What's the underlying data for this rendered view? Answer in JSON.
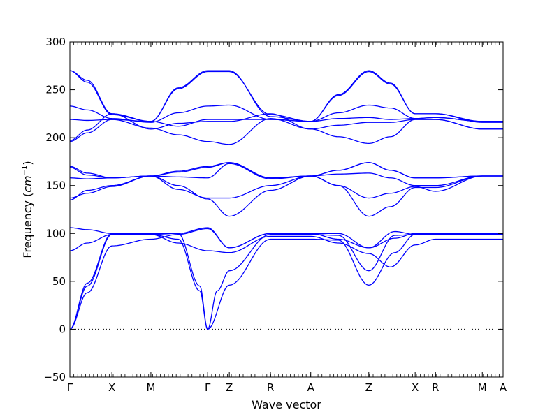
{
  "chart_data": {
    "type": "line",
    "xlabel": "Wave vector",
    "ylabel": "Frequency",
    "ylabel_unit": "cm",
    "ylabel_unit_exp": "−1",
    "ylim": [
      -50,
      300
    ],
    "y_ticks": [
      -50,
      0,
      50,
      100,
      150,
      200,
      250,
      300
    ],
    "y_tick_labels": [
      "−50",
      "0",
      "50",
      "100",
      "150",
      "200",
      "250",
      "300"
    ],
    "grid": false,
    "line_color": "#0000ff",
    "zero_line": true,
    "kpoint_labels": [
      "Γ",
      "X",
      "M",
      "Γ",
      "Z",
      "R",
      "A",
      "Z",
      "X",
      "R",
      "M",
      "A"
    ],
    "kpoint_positions": [
      0,
      0.097,
      0.187,
      0.318,
      0.368,
      0.463,
      0.556,
      0.69,
      0.797,
      0.844,
      0.952,
      1.0
    ],
    "series": [
      {
        "values": [
          [
            0,
            0
          ],
          [
            0.04,
            38
          ],
          [
            0.097,
            87
          ],
          [
            0.187,
            94
          ],
          [
            0.25,
            99
          ],
          [
            0.318,
            105
          ],
          [
            0.368,
            85
          ],
          [
            0.463,
            100
          ],
          [
            0.556,
            100
          ],
          [
            0.62,
            94
          ],
          [
            0.69,
            85
          ],
          [
            0.75,
            102
          ],
          [
            0.797,
            99
          ],
          [
            0.952,
            99
          ],
          [
            1.0,
            99
          ]
        ]
      },
      {
        "values": [
          [
            0,
            0
          ],
          [
            0.04,
            45
          ],
          [
            0.097,
            99
          ],
          [
            0.187,
            99
          ],
          [
            0.25,
            94
          ],
          [
            0.3,
            40
          ],
          [
            0.318,
            0
          ],
          [
            0.368,
            46
          ],
          [
            0.463,
            94
          ],
          [
            0.556,
            94
          ],
          [
            0.62,
            93
          ],
          [
            0.69,
            46
          ],
          [
            0.75,
            80
          ],
          [
            0.797,
            99
          ],
          [
            0.952,
            99
          ],
          [
            1.0,
            99
          ]
        ]
      },
      {
        "values": [
          [
            0,
            0
          ],
          [
            0.04,
            48
          ],
          [
            0.097,
            100
          ],
          [
            0.187,
            99
          ],
          [
            0.25,
            100
          ],
          [
            0.3,
            45
          ],
          [
            0.318,
            0
          ],
          [
            0.34,
            40
          ],
          [
            0.368,
            61
          ],
          [
            0.463,
            99
          ],
          [
            0.556,
            99
          ],
          [
            0.62,
            98
          ],
          [
            0.69,
            61
          ],
          [
            0.75,
            98
          ],
          [
            0.797,
            99
          ],
          [
            0.952,
            99
          ],
          [
            1.0,
            99
          ]
        ]
      },
      {
        "values": [
          [
            0,
            82
          ],
          [
            0.04,
            90
          ],
          [
            0.097,
            99
          ],
          [
            0.187,
            99
          ],
          [
            0.25,
            90
          ],
          [
            0.318,
            82
          ],
          [
            0.368,
            80
          ],
          [
            0.463,
            97
          ],
          [
            0.556,
            97
          ],
          [
            0.62,
            90
          ],
          [
            0.69,
            79
          ],
          [
            0.74,
            65
          ],
          [
            0.797,
            88
          ],
          [
            0.844,
            94
          ],
          [
            0.952,
            94
          ],
          [
            1.0,
            94
          ]
        ]
      },
      {
        "values": [
          [
            0,
            106
          ],
          [
            0.04,
            104
          ],
          [
            0.097,
            100
          ],
          [
            0.187,
            100
          ],
          [
            0.25,
            100
          ],
          [
            0.318,
            106
          ],
          [
            0.368,
            85
          ],
          [
            0.463,
            100
          ],
          [
            0.556,
            100
          ],
          [
            0.62,
            100
          ],
          [
            0.69,
            85
          ],
          [
            0.75,
            95
          ],
          [
            0.797,
            100
          ],
          [
            0.952,
            100
          ],
          [
            1.0,
            100
          ]
        ]
      },
      {
        "values": [
          [
            0,
            135
          ],
          [
            0.04,
            145
          ],
          [
            0.097,
            150
          ],
          [
            0.187,
            160
          ],
          [
            0.25,
            150
          ],
          [
            0.318,
            136
          ],
          [
            0.368,
            118
          ],
          [
            0.463,
            145
          ],
          [
            0.556,
            160
          ],
          [
            0.62,
            150
          ],
          [
            0.69,
            118
          ],
          [
            0.74,
            128
          ],
          [
            0.797,
            148
          ],
          [
            0.844,
            148
          ],
          [
            0.952,
            160
          ],
          [
            1.0,
            160
          ]
        ]
      },
      {
        "values": [
          [
            0,
            137
          ],
          [
            0.04,
            142
          ],
          [
            0.097,
            149
          ],
          [
            0.187,
            160
          ],
          [
            0.25,
            146
          ],
          [
            0.318,
            137
          ],
          [
            0.368,
            137
          ],
          [
            0.463,
            150
          ],
          [
            0.556,
            160
          ],
          [
            0.62,
            150
          ],
          [
            0.69,
            137
          ],
          [
            0.74,
            142
          ],
          [
            0.797,
            149
          ],
          [
            0.844,
            144
          ],
          [
            0.952,
            160
          ],
          [
            1.0,
            160
          ]
        ]
      },
      {
        "values": [
          [
            0,
            158
          ],
          [
            0.04,
            157
          ],
          [
            0.097,
            158
          ],
          [
            0.187,
            160
          ],
          [
            0.25,
            159
          ],
          [
            0.318,
            158
          ],
          [
            0.368,
            173
          ],
          [
            0.463,
            157
          ],
          [
            0.556,
            160
          ],
          [
            0.62,
            162
          ],
          [
            0.69,
            163
          ],
          [
            0.74,
            158
          ],
          [
            0.797,
            150
          ],
          [
            0.844,
            150
          ],
          [
            0.952,
            160
          ],
          [
            1.0,
            160
          ]
        ]
      },
      {
        "values": [
          [
            0,
            169
          ],
          [
            0.04,
            161
          ],
          [
            0.097,
            158
          ],
          [
            0.187,
            160
          ],
          [
            0.25,
            164
          ],
          [
            0.318,
            169
          ],
          [
            0.368,
            174
          ],
          [
            0.463,
            158
          ],
          [
            0.556,
            160
          ],
          [
            0.62,
            166
          ],
          [
            0.69,
            174
          ],
          [
            0.74,
            166
          ],
          [
            0.797,
            158
          ],
          [
            0.844,
            158
          ],
          [
            0.952,
            160
          ],
          [
            1.0,
            160
          ]
        ]
      },
      {
        "values": [
          [
            0,
            170
          ],
          [
            0.04,
            163
          ],
          [
            0.097,
            158
          ],
          [
            0.187,
            160
          ],
          [
            0.25,
            165
          ],
          [
            0.318,
            170
          ],
          [
            0.368,
            174
          ],
          [
            0.463,
            158
          ],
          [
            0.556,
            160
          ],
          [
            0.62,
            166
          ],
          [
            0.69,
            174
          ],
          [
            0.74,
            166
          ],
          [
            0.797,
            158
          ],
          [
            0.844,
            158
          ],
          [
            0.952,
            160
          ],
          [
            1.0,
            160
          ]
        ]
      },
      {
        "values": [
          [
            0,
            196
          ],
          [
            0.04,
            205
          ],
          [
            0.097,
            219
          ],
          [
            0.187,
            210
          ],
          [
            0.25,
            203
          ],
          [
            0.318,
            196
          ],
          [
            0.368,
            193
          ],
          [
            0.463,
            220
          ],
          [
            0.556,
            209
          ],
          [
            0.62,
            201
          ],
          [
            0.69,
            194
          ],
          [
            0.74,
            201
          ],
          [
            0.797,
            219
          ],
          [
            0.844,
            219
          ],
          [
            0.952,
            209
          ],
          [
            1.0,
            209
          ]
        ]
      },
      {
        "values": [
          [
            0,
            197
          ],
          [
            0.04,
            208
          ],
          [
            0.097,
            225
          ],
          [
            0.187,
            209
          ],
          [
            0.25,
            215
          ],
          [
            0.318,
            217
          ],
          [
            0.368,
            217
          ],
          [
            0.463,
            225
          ],
          [
            0.556,
            209
          ],
          [
            0.62,
            213
          ],
          [
            0.69,
            216
          ],
          [
            0.74,
            216
          ],
          [
            0.797,
            219
          ],
          [
            0.844,
            219
          ],
          [
            0.952,
            209
          ],
          [
            1.0,
            209
          ]
        ]
      },
      {
        "values": [
          [
            0,
            219
          ],
          [
            0.04,
            218
          ],
          [
            0.097,
            219
          ],
          [
            0.187,
            217
          ],
          [
            0.25,
            212
          ],
          [
            0.318,
            219
          ],
          [
            0.368,
            219
          ],
          [
            0.463,
            219
          ],
          [
            0.556,
            217
          ],
          [
            0.62,
            220
          ],
          [
            0.69,
            221
          ],
          [
            0.74,
            219
          ],
          [
            0.797,
            220
          ],
          [
            0.844,
            221
          ],
          [
            0.952,
            217
          ],
          [
            1.0,
            217
          ]
        ]
      },
      {
        "values": [
          [
            0,
            233
          ],
          [
            0.04,
            229
          ],
          [
            0.097,
            220
          ],
          [
            0.187,
            216
          ],
          [
            0.25,
            226
          ],
          [
            0.318,
            233
          ],
          [
            0.368,
            234
          ],
          [
            0.463,
            219
          ],
          [
            0.556,
            217
          ],
          [
            0.62,
            226
          ],
          [
            0.69,
            234
          ],
          [
            0.74,
            231
          ],
          [
            0.797,
            220
          ],
          [
            0.844,
            221
          ],
          [
            0.952,
            217
          ],
          [
            1.0,
            217
          ]
        ]
      },
      {
        "values": [
          [
            0,
            270
          ],
          [
            0.04,
            260
          ],
          [
            0.097,
            225
          ],
          [
            0.187,
            217
          ],
          [
            0.25,
            252
          ],
          [
            0.318,
            270
          ],
          [
            0.368,
            270
          ],
          [
            0.463,
            222
          ],
          [
            0.556,
            217
          ],
          [
            0.62,
            245
          ],
          [
            0.69,
            270
          ],
          [
            0.74,
            257
          ],
          [
            0.797,
            225
          ],
          [
            0.844,
            225
          ],
          [
            0.952,
            217
          ],
          [
            1.0,
            217
          ]
        ]
      },
      {
        "values": [
          [
            0,
            270
          ],
          [
            0.04,
            258
          ],
          [
            0.097,
            224
          ],
          [
            0.187,
            217
          ],
          [
            0.25,
            251
          ],
          [
            0.318,
            269
          ],
          [
            0.368,
            269
          ],
          [
            0.463,
            224
          ],
          [
            0.556,
            217
          ],
          [
            0.62,
            244
          ],
          [
            0.69,
            269
          ],
          [
            0.74,
            256
          ],
          [
            0.797,
            225
          ],
          [
            0.844,
            225
          ],
          [
            0.952,
            216
          ],
          [
            1.0,
            216
          ]
        ]
      }
    ]
  }
}
